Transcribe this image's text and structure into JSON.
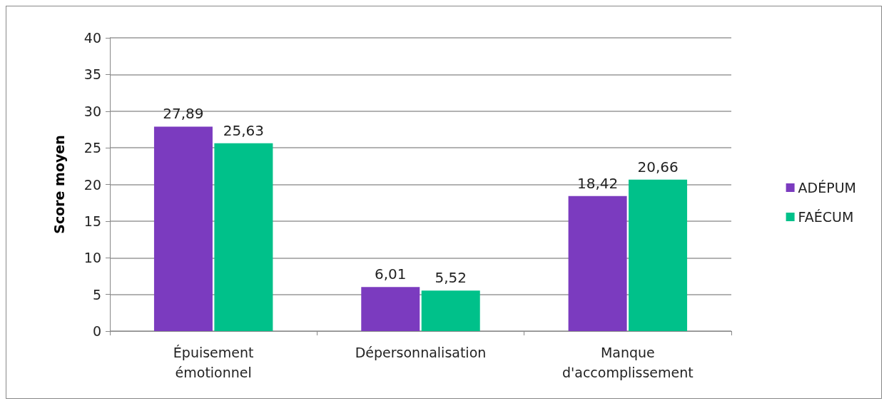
{
  "chart_data": {
    "type": "bar",
    "ylabel": "Score moyen",
    "categories": [
      "Épuisement\némotionnel",
      "Dépersonnalisation",
      "Manque\nd'accomplissement"
    ],
    "series": [
      {
        "name": "ADÉPUM",
        "color": "#7b3bbf",
        "values": [
          27.89,
          6.01,
          18.42
        ],
        "value_labels": [
          "27,89",
          "6,01",
          "18,42"
        ]
      },
      {
        "name": "FAÉCUM",
        "color": "#00c18a",
        "values": [
          25.63,
          5.52,
          20.66
        ],
        "value_labels": [
          "25,63",
          "5,52",
          "20,66"
        ]
      }
    ],
    "ylim": [
      0,
      40
    ],
    "yticks": [
      0,
      5,
      10,
      15,
      20,
      25,
      30,
      35,
      40
    ],
    "grid": "y",
    "legend": "right"
  }
}
